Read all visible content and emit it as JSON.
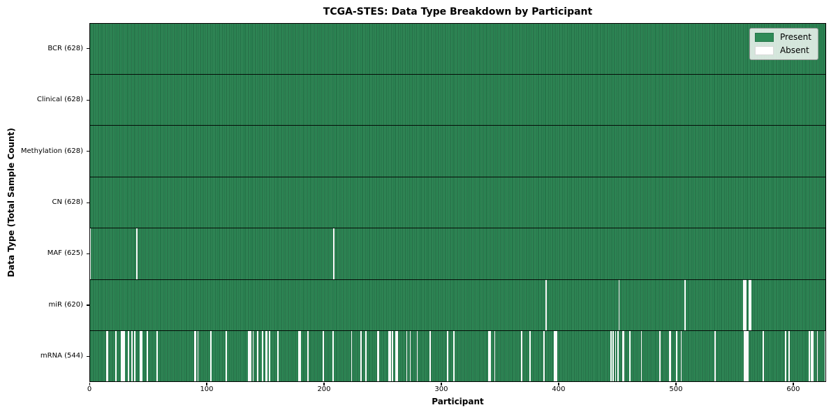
{
  "chart_data": {
    "type": "heatmap",
    "title": "TCGA-STES: Data Type Breakdown by Participant",
    "xlabel": "Participant",
    "ylabel": "Data Type (Total Sample Count)",
    "x_range": [
      0,
      628
    ],
    "x_ticks": [
      0,
      100,
      200,
      300,
      400,
      500,
      600
    ],
    "n_participants": 628,
    "grid": false,
    "legend_position": "upper right",
    "colors": {
      "present": "#2e8b57",
      "absent": "#ffffff",
      "row_separator": "#000000",
      "legend_background": "#e3e8e3"
    },
    "legend_entries": [
      {
        "label": "Present",
        "color": "#2e8b57"
      },
      {
        "label": "Absent",
        "color": "#ffffff"
      }
    ],
    "rows": [
      {
        "data_type": "BCR",
        "label": "BCR (628)",
        "present_count": 628,
        "absent_participants": []
      },
      {
        "data_type": "Clinical",
        "label": "Clinical (628)",
        "present_count": 628,
        "absent_participants": []
      },
      {
        "data_type": "Methylation",
        "label": "Methylation (628)",
        "present_count": 628,
        "absent_participants": []
      },
      {
        "data_type": "CN",
        "label": "CN (628)",
        "present_count": 628,
        "absent_participants": []
      },
      {
        "data_type": "MAF",
        "label": "MAF (625)",
        "present_count": 625,
        "absent_participants": [
          0,
          40,
          208
        ]
      },
      {
        "data_type": "miR",
        "label": "miR (620)",
        "present_count": 620,
        "absent_participants": [
          389,
          451,
          507,
          557,
          558,
          559,
          562,
          563
        ]
      },
      {
        "data_type": "mRNA",
        "label": "mRNA (544)",
        "present_count": 544,
        "absent_participants": [
          14,
          15,
          22,
          27,
          28,
          29,
          33,
          36,
          38,
          43,
          44,
          49,
          57,
          89,
          90,
          92,
          103,
          116,
          135,
          136,
          137,
          139,
          143,
          147,
          150,
          151,
          153,
          160,
          178,
          179,
          186,
          199,
          207,
          223,
          231,
          235,
          245,
          246,
          255,
          256,
          258,
          261,
          262,
          270,
          273,
          279,
          290,
          305,
          310,
          340,
          341,
          345,
          368,
          375,
          387,
          396,
          397,
          398,
          444,
          446,
          448,
          450,
          454,
          455,
          460,
          470,
          486,
          494,
          495,
          500,
          504,
          533,
          558,
          559,
          560,
          561,
          574,
          593,
          596,
          613,
          615,
          616,
          620,
          627
        ]
      }
    ]
  }
}
